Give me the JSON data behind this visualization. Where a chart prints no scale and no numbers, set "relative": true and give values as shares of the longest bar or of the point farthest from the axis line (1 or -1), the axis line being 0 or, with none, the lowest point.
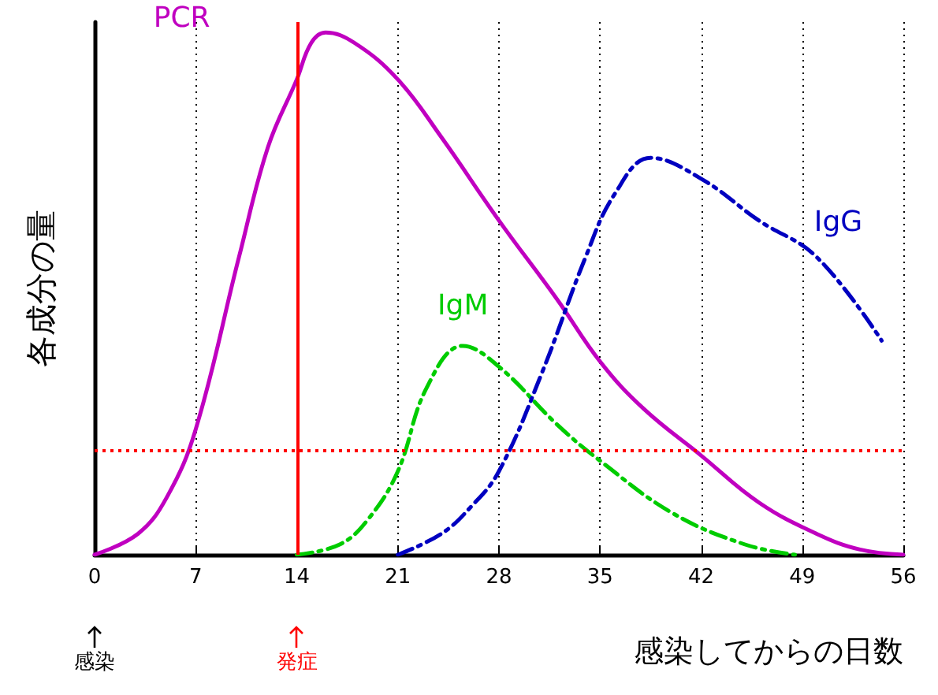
{
  "chart_data": {
    "type": "line",
    "relative": true,
    "xlabel": "感染してからの日数",
    "ylabel": "各成分の量",
    "xlim": [
      0,
      56
    ],
    "xticks": [
      0,
      7,
      14,
      21,
      28,
      35,
      42,
      49,
      56
    ],
    "grid": "x",
    "legend": false,
    "marker": "none",
    "series": [
      {
        "name": "PCR",
        "color": "#c000c0",
        "line_style": "solid",
        "x": [
          0,
          3,
          5,
          7,
          10,
          12,
          14,
          15,
          16,
          18,
          21,
          24,
          28,
          32,
          35,
          38,
          42,
          46,
          50,
          53,
          56
        ],
        "values": [
          0,
          0.04,
          0.11,
          0.24,
          0.57,
          0.78,
          0.91,
          0.98,
          1,
          0.98,
          0.91,
          0.8,
          0.64,
          0.49,
          0.37,
          0.28,
          0.19,
          0.1,
          0.04,
          0.01,
          0
        ]
      },
      {
        "name": "IgM",
        "color": "#00cc00",
        "line_style": "dashed",
        "x": [
          14,
          17,
          19,
          21,
          23,
          25.5,
          28,
          32,
          35,
          40,
          45,
          48.5
        ],
        "values": [
          0,
          0.02,
          0.07,
          0.16,
          0.32,
          0.4,
          0.36,
          0.25,
          0.18,
          0.08,
          0.02,
          0
        ]
      },
      {
        "name": "IgG",
        "color": "#0000c0",
        "line_style": "dashed",
        "x": [
          21,
          24,
          26,
          28,
          31,
          34,
          36,
          38.5,
          42,
          46,
          50,
          54.5
        ],
        "values": [
          0,
          0.04,
          0.09,
          0.16,
          0.35,
          0.57,
          0.69,
          0.76,
          0.72,
          0.64,
          0.57,
          0.41
        ]
      }
    ],
    "ref_lines": [
      {
        "axis": "x",
        "value": 14,
        "color": "#ff0000",
        "line_style": "solid"
      },
      {
        "axis": "y",
        "value": 0.2,
        "color": "#ff0000",
        "line_style": "dotted"
      }
    ],
    "annotations": [
      {
        "text": "感染",
        "x": 0
      },
      {
        "text": "発症",
        "x": 14
      }
    ]
  }
}
